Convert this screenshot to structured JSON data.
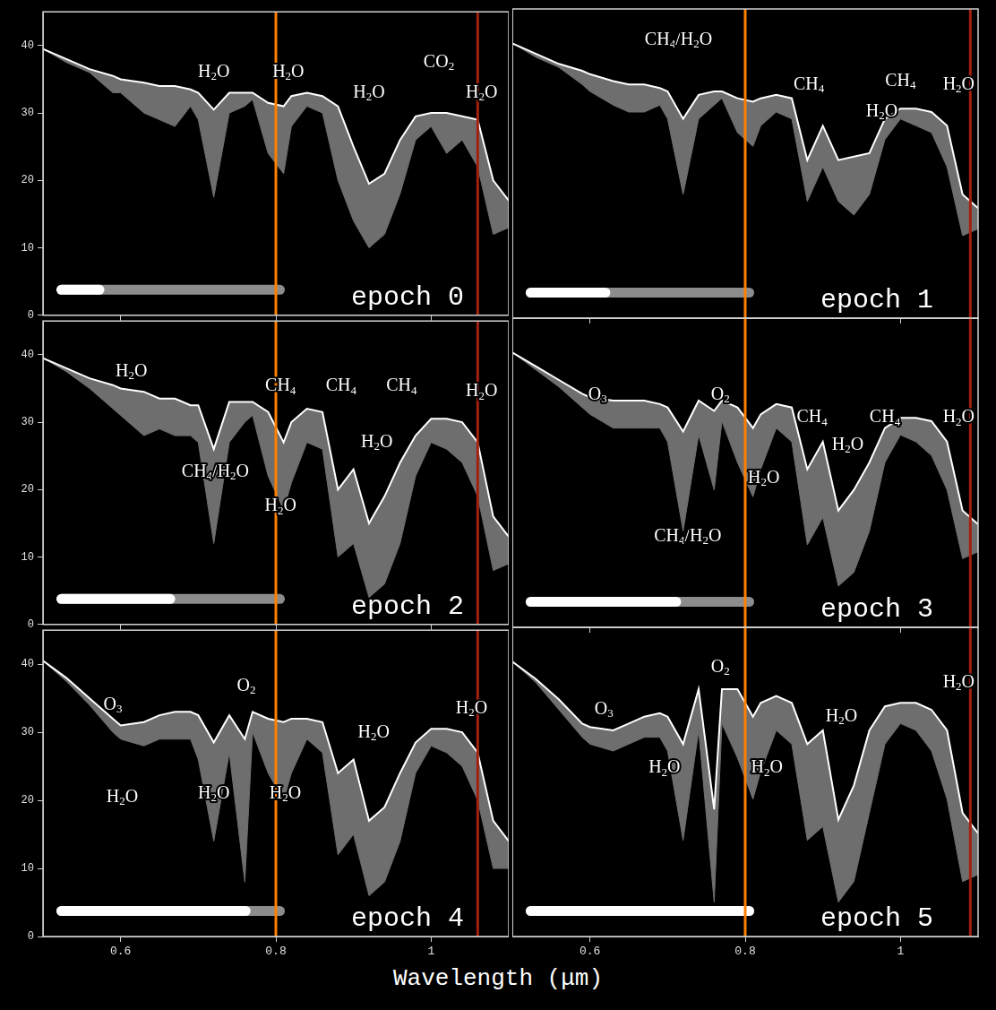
{
  "xlabel": "Wavelength (μm)",
  "chart_data": [
    {
      "type": "line",
      "title": "epoch 0",
      "timeline": 0.21,
      "xlim": [
        0.5,
        1.1
      ],
      "xticks": [
        0.6,
        0.8,
        1
      ],
      "ylim": [
        0,
        45
      ],
      "yticks": [
        0,
        10,
        20,
        30,
        40
      ],
      "grid": false,
      "tick_labels": "y",
      "x": [
        0.5,
        0.53,
        0.56,
        0.59,
        0.6,
        0.63,
        0.65,
        0.67,
        0.69,
        0.7,
        0.72,
        0.74,
        0.76,
        0.77,
        0.79,
        0.81,
        0.82,
        0.84,
        0.86,
        0.88,
        0.9,
        0.92,
        0.94,
        0.96,
        0.98,
        1.0,
        1.02,
        1.04,
        1.06,
        1.08,
        1.1
      ],
      "series": [
        {
          "type": "line",
          "color": "#ffffff",
          "values": [
            39.5,
            38,
            36.5,
            35.5,
            35,
            34.5,
            34,
            34,
            33.5,
            33,
            30.5,
            33,
            33,
            33,
            31.5,
            31,
            32.5,
            33,
            32.5,
            31,
            25,
            19.5,
            21,
            26,
            29.5,
            30,
            30,
            29.5,
            29,
            20,
            17
          ]
        },
        {
          "type": "area",
          "color": "#6e6e6e",
          "values": [
            39.5,
            37.5,
            36,
            33,
            33,
            30,
            29,
            28,
            31,
            29,
            17.5,
            30,
            31,
            32,
            24,
            21,
            28,
            31,
            30,
            20,
            14,
            10,
            12,
            18,
            26,
            28,
            24,
            26,
            22,
            12,
            13
          ]
        }
      ],
      "annotations": [
        {
          "text": "H2O",
          "x": 0.72,
          "y": 36
        },
        {
          "text": "H2O",
          "x": 0.816,
          "y": 36
        },
        {
          "text": "H2O",
          "x": 0.92,
          "y": 33
        },
        {
          "text": "CO2",
          "x": 1.01,
          "y": 37.5
        },
        {
          "text": "H2O",
          "x": 1.065,
          "y": 33
        }
      ],
      "vertical_lines": [
        {
          "x": 0.8,
          "color": "#ff8000"
        },
        {
          "x": 1.06,
          "color": "#a3200f"
        }
      ]
    },
    {
      "type": "line",
      "title": "epoch 1",
      "timeline": 0.37,
      "xlim": [
        0.5,
        1.1
      ],
      "xticks": [
        0.6,
        0.8,
        1
      ],
      "ylim": [
        0,
        45
      ],
      "yticks": [
        0,
        10,
        20,
        30,
        40
      ],
      "grid": false,
      "tick_labels": false,
      "x": [
        0.5,
        0.53,
        0.56,
        0.59,
        0.6,
        0.63,
        0.65,
        0.67,
        0.69,
        0.7,
        0.72,
        0.74,
        0.76,
        0.77,
        0.79,
        0.81,
        0.82,
        0.84,
        0.86,
        0.88,
        0.9,
        0.92,
        0.94,
        0.96,
        0.98,
        1.0,
        1.02,
        1.04,
        1.06,
        1.08,
        1.1
      ],
      "series": [
        {
          "type": "line",
          "color": "#ffffff",
          "values": [
            40,
            38.5,
            37,
            36,
            35.5,
            34.5,
            34,
            34,
            33.5,
            33,
            29,
            32.5,
            33,
            33,
            32,
            31.5,
            32,
            32.5,
            32,
            23,
            28,
            23,
            23.5,
            24,
            29,
            30.5,
            30.5,
            30,
            28,
            18,
            16
          ]
        },
        {
          "type": "area",
          "color": "#6e6e6e",
          "values": [
            40,
            38,
            36.5,
            34,
            33,
            31,
            30,
            30,
            31,
            29,
            18,
            29,
            31,
            32,
            27,
            25,
            28,
            30,
            29,
            17,
            22,
            17,
            15,
            18,
            26,
            29,
            28,
            27,
            22,
            12,
            13
          ]
        }
      ],
      "annotations": [
        {
          "text": "CH4/H2O",
          "x": 0.714,
          "y": 40.5
        },
        {
          "text": "CH4",
          "x": 0.882,
          "y": 34
        },
        {
          "text": "CH4",
          "x": 1.0,
          "y": 34.5
        },
        {
          "text": "H2O",
          "x": 0.976,
          "y": 30
        },
        {
          "text": "H2O",
          "x": 1.075,
          "y": 34
        }
      ],
      "vertical_lines": [
        {
          "x": 0.8,
          "color": "#ff8000"
        },
        {
          "x": 1.09,
          "color": "#a3200f"
        }
      ]
    },
    {
      "type": "line",
      "title": "epoch 2",
      "timeline": 0.52,
      "xlim": [
        0.5,
        1.1
      ],
      "xticks": [
        0.6,
        0.8,
        1
      ],
      "ylim": [
        0,
        45
      ],
      "yticks": [
        0,
        10,
        20,
        30,
        40
      ],
      "grid": false,
      "tick_labels": "y",
      "x": [
        0.5,
        0.53,
        0.56,
        0.59,
        0.6,
        0.63,
        0.65,
        0.67,
        0.69,
        0.7,
        0.72,
        0.74,
        0.76,
        0.77,
        0.79,
        0.81,
        0.82,
        0.84,
        0.86,
        0.88,
        0.9,
        0.92,
        0.94,
        0.96,
        0.98,
        1.0,
        1.02,
        1.04,
        1.06,
        1.08,
        1.1
      ],
      "series": [
        {
          "type": "line",
          "color": "#ffffff",
          "values": [
            39.5,
            38,
            36.5,
            35.5,
            35,
            34.5,
            33.5,
            33.5,
            32.5,
            32.5,
            26,
            33,
            33,
            33,
            31.5,
            27,
            30,
            32,
            31.5,
            20,
            23,
            15,
            19,
            24,
            28,
            30.5,
            30.5,
            30,
            27,
            16,
            13
          ]
        },
        {
          "type": "area",
          "color": "#6e6e6e",
          "values": [
            39.5,
            37.5,
            35,
            32,
            31,
            28,
            29,
            28,
            28,
            27,
            12,
            27,
            30,
            31,
            22,
            17,
            21,
            27,
            26,
            10,
            12,
            4,
            6,
            12,
            22,
            27,
            26,
            24,
            19,
            8,
            9
          ]
        }
      ],
      "annotations": [
        {
          "text": "H2O",
          "x": 0.614,
          "y": 37.5
        },
        {
          "text": "CH4",
          "x": 0.806,
          "y": 35.3
        },
        {
          "text": "CH4",
          "x": 0.884,
          "y": 35.3
        },
        {
          "text": "CH4",
          "x": 0.962,
          "y": 35.3
        },
        {
          "text": "H2O",
          "x": 1.065,
          "y": 34.5
        },
        {
          "text": "CH4/H2O",
          "x": 0.722,
          "y": 22.6
        },
        {
          "text": "H2O",
          "x": 0.806,
          "y": 17.5
        },
        {
          "text": "H2O",
          "x": 0.93,
          "y": 27
        }
      ],
      "vertical_lines": [
        {
          "x": 0.8,
          "color": "#ff8000"
        },
        {
          "x": 1.06,
          "color": "#a3200f"
        }
      ]
    },
    {
      "type": "line",
      "title": "epoch 3",
      "timeline": 0.68,
      "xlim": [
        0.5,
        1.1
      ],
      "xticks": [
        0.6,
        0.8,
        1
      ],
      "ylim": [
        0,
        45
      ],
      "yticks": [
        0,
        10,
        20,
        30,
        40
      ],
      "grid": false,
      "tick_labels": false,
      "x": [
        0.5,
        0.53,
        0.56,
        0.59,
        0.6,
        0.63,
        0.65,
        0.67,
        0.69,
        0.7,
        0.72,
        0.74,
        0.76,
        0.77,
        0.79,
        0.81,
        0.82,
        0.84,
        0.86,
        0.88,
        0.9,
        0.92,
        0.94,
        0.96,
        0.98,
        1.0,
        1.02,
        1.04,
        1.06,
        1.08,
        1.1
      ],
      "series": [
        {
          "type": "line",
          "color": "#ffffff",
          "values": [
            40,
            38,
            36,
            34,
            33.5,
            33,
            33,
            33,
            32.5,
            32,
            28.5,
            33,
            31.5,
            33,
            32,
            29,
            31,
            32.5,
            32,
            23,
            27,
            17,
            20,
            24,
            29,
            30.5,
            30.5,
            30,
            27,
            17,
            15
          ]
        },
        {
          "type": "area",
          "color": "#6e6e6e",
          "values": [
            40,
            37.5,
            35,
            32,
            31,
            29,
            29,
            29,
            29,
            27,
            14,
            28,
            20,
            30,
            24,
            19,
            23,
            29,
            27,
            12,
            16,
            6,
            8,
            14,
            24,
            28,
            27,
            25,
            20,
            10,
            11
          ]
        }
      ],
      "annotations": [
        {
          "text": "O3",
          "x": 0.61,
          "y": 33.8
        },
        {
          "text": "O2",
          "x": 0.768,
          "y": 33.8
        },
        {
          "text": "CH4",
          "x": 0.886,
          "y": 30.5
        },
        {
          "text": "CH4",
          "x": 0.98,
          "y": 30.5
        },
        {
          "text": "H2O",
          "x": 1.075,
          "y": 30.5
        },
        {
          "text": "H2O",
          "x": 0.932,
          "y": 26.5
        },
        {
          "text": "H2O",
          "x": 0.824,
          "y": 21.7
        },
        {
          "text": "CH4/H2O",
          "x": 0.726,
          "y": 13.2
        }
      ],
      "vertical_lines": [
        {
          "x": 0.8,
          "color": "#ff8000"
        },
        {
          "x": 1.09,
          "color": "#a3200f"
        }
      ]
    },
    {
      "type": "line",
      "title": "epoch 4",
      "timeline": 0.85,
      "xlim": [
        0.5,
        1.1
      ],
      "xticks": [
        0.6,
        0.8,
        1
      ],
      "ylim": [
        0,
        45
      ],
      "yticks": [
        0,
        10,
        20,
        30,
        40
      ],
      "grid": false,
      "tick_labels": true,
      "x": [
        0.5,
        0.53,
        0.56,
        0.59,
        0.6,
        0.63,
        0.65,
        0.67,
        0.69,
        0.7,
        0.72,
        0.74,
        0.76,
        0.77,
        0.79,
        0.81,
        0.82,
        0.84,
        0.86,
        0.88,
        0.9,
        0.92,
        0.94,
        0.96,
        0.98,
        1.0,
        1.02,
        1.04,
        1.06,
        1.08,
        1.1
      ],
      "series": [
        {
          "type": "line",
          "color": "#ffffff",
          "values": [
            40.5,
            38,
            35,
            32,
            31,
            31.5,
            32.5,
            33,
            33,
            32.5,
            28.5,
            32.5,
            29,
            33,
            32,
            31.5,
            32,
            32,
            31.5,
            24,
            26,
            17,
            19,
            24,
            28.5,
            30.5,
            30.5,
            30,
            27,
            17,
            14
          ]
        },
        {
          "type": "area",
          "color": "#6e6e6e",
          "values": [
            40.5,
            37.5,
            34,
            30,
            29,
            28,
            29,
            29,
            29,
            26,
            14,
            27,
            8,
            30,
            24,
            20,
            24,
            29,
            27,
            12,
            15,
            6,
            8,
            14,
            24,
            28,
            27,
            25,
            20,
            10,
            10
          ]
        }
      ],
      "annotations": [
        {
          "text": "O3",
          "x": 0.59,
          "y": 34
        },
        {
          "text": "O2",
          "x": 0.762,
          "y": 36.8
        },
        {
          "text": "H2O",
          "x": 0.926,
          "y": 29.9
        },
        {
          "text": "H2O",
          "x": 1.052,
          "y": 33.5
        },
        {
          "text": "H2O",
          "x": 0.602,
          "y": 20.4
        },
        {
          "text": "H2O",
          "x": 0.72,
          "y": 21
        },
        {
          "text": "H2O",
          "x": 0.812,
          "y": 21
        }
      ],
      "vertical_lines": [
        {
          "x": 0.8,
          "color": "#ff8000"
        },
        {
          "x": 1.06,
          "color": "#a3200f"
        }
      ]
    },
    {
      "type": "line",
      "title": "epoch 5",
      "timeline": 1.0,
      "xlim": [
        0.5,
        1.1
      ],
      "xticks": [
        0.6,
        0.8,
        1
      ],
      "ylim": [
        0,
        45
      ],
      "yticks": [
        0,
        10,
        20,
        30,
        40
      ],
      "grid": false,
      "tick_labels": "x",
      "x": [
        0.5,
        0.53,
        0.56,
        0.59,
        0.6,
        0.63,
        0.65,
        0.67,
        0.69,
        0.7,
        0.72,
        0.74,
        0.76,
        0.77,
        0.79,
        0.81,
        0.82,
        0.84,
        0.86,
        0.88,
        0.9,
        0.92,
        0.94,
        0.96,
        0.98,
        1.0,
        1.02,
        1.04,
        1.06,
        1.08,
        1.1
      ],
      "series": [
        {
          "type": "line",
          "color": "#ffffff",
          "values": [
            40,
            37.5,
            34.5,
            31,
            30.5,
            30,
            31,
            32,
            32.5,
            32,
            28,
            36,
            18.5,
            36,
            36,
            32,
            34,
            35,
            34,
            28,
            30,
            17,
            22,
            30,
            33.5,
            34,
            34,
            33,
            30,
            18,
            15
          ]
        },
        {
          "type": "area",
          "color": "#6e6e6e",
          "values": [
            40,
            37,
            33,
            29,
            28,
            27,
            28,
            29,
            29,
            27,
            14,
            30,
            5,
            31,
            26,
            20,
            24,
            30,
            28,
            14,
            16,
            5,
            8,
            18,
            28,
            31,
            30,
            27,
            20,
            8,
            9
          ]
        }
      ],
      "annotations": [
        {
          "text": "O3",
          "x": 0.618,
          "y": 33
        },
        {
          "text": "O2",
          "x": 0.768,
          "y": 39.2
        },
        {
          "text": "H2O",
          "x": 0.924,
          "y": 32
        },
        {
          "text": "H2O",
          "x": 1.075,
          "y": 37
        },
        {
          "text": "H2O",
          "x": 0.696,
          "y": 24.5
        },
        {
          "text": "H2O",
          "x": 0.828,
          "y": 24.5
        }
      ],
      "vertical_lines": [
        {
          "x": 0.8,
          "color": "#ff8000"
        },
        {
          "x": 1.09,
          "color": "#a3200f"
        }
      ]
    }
  ]
}
